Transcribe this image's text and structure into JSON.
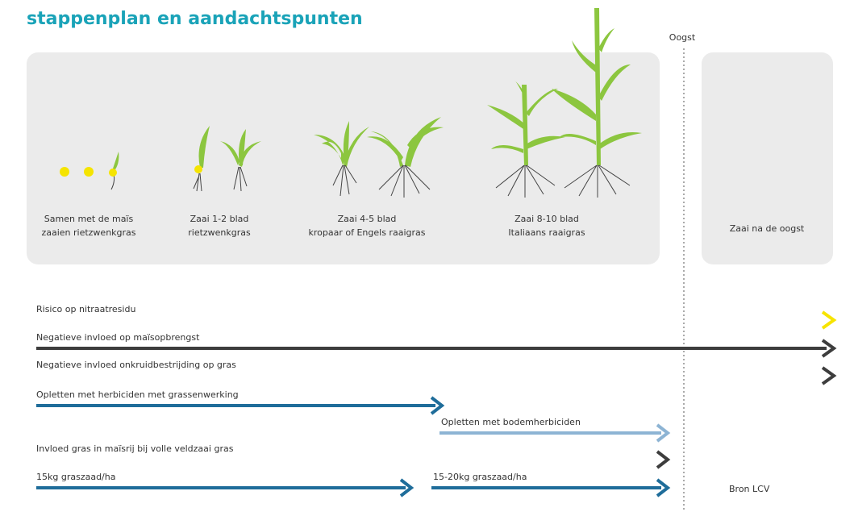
{
  "header": {
    "title": "stappenplan en aandachtspunten"
  },
  "harvest_label": "Oogst",
  "stages": [
    {
      "lines": [
        "Samen met de maïs",
        "zaaien rietzwenkgras"
      ]
    },
    {
      "lines": [
        "Zaai 1-2 blad",
        "rietzwenkgras"
      ]
    },
    {
      "lines": [
        "Zaai 4-5 blad",
        "kropaar of Engels raaigras"
      ]
    },
    {
      "lines": [
        "Zaai 8-10 blad",
        "Italiaans raaigras"
      ]
    }
  ],
  "after_harvest": "Zaai na de oogst",
  "arrows": [
    {
      "label": "Risico op nitraatresidu"
    },
    {
      "label": "Negatieve invloed op maïsopbrengst"
    },
    {
      "label": "Negatieve invloed onkruidbestrijding op gras"
    },
    {
      "label": "Opletten met herbiciden met grassenwerking"
    },
    {
      "label": "Opletten met bodemherbiciden"
    },
    {
      "label": "Invloed gras in maïsrij bij volle veldzaai gras"
    },
    {
      "label": "15kg graszaad/ha"
    },
    {
      "label": "15-20kg graszaad/ha"
    }
  ],
  "source": "Bron LCV"
}
